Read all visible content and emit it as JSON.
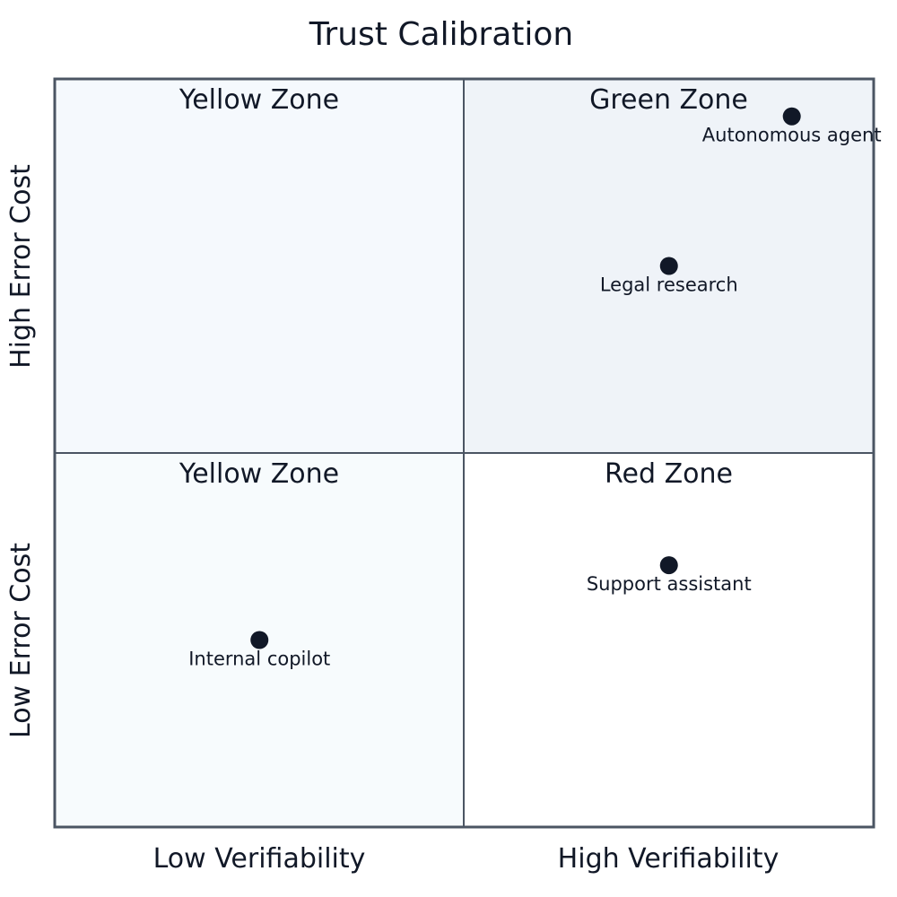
{
  "chart_data": {
    "type": "scatter",
    "title": "Trust Calibration",
    "x_axis": {
      "low_label": "Low Verifiability",
      "high_label": "High Verifiability"
    },
    "y_axis": {
      "low_label": "Low Error Cost",
      "high_label": "High Error Cost"
    },
    "xlim": [
      0,
      1
    ],
    "ylim": [
      0,
      1
    ],
    "grid": false,
    "quadrants": [
      {
        "position": "top-left",
        "label": "Yellow Zone",
        "color": "#f5f9fd"
      },
      {
        "position": "top-right",
        "label": "Green Zone",
        "color": "#eff3f8"
      },
      {
        "position": "bottom-left",
        "label": "Yellow Zone",
        "color": "#f7fbfd"
      },
      {
        "position": "bottom-right",
        "label": "Red Zone",
        "color": "#ffffff"
      }
    ],
    "points": [
      {
        "label": "Autonomous agent",
        "x": 0.9,
        "y": 0.95
      },
      {
        "label": "Legal research",
        "x": 0.75,
        "y": 0.75
      },
      {
        "label": "Support assistant",
        "x": 0.75,
        "y": 0.35
      },
      {
        "label": "Internal copilot",
        "x": 0.25,
        "y": 0.25
      }
    ],
    "colors": {
      "border": "#4b5563",
      "divider": "#4b5563",
      "point": "#111827",
      "text": "#111827"
    }
  }
}
